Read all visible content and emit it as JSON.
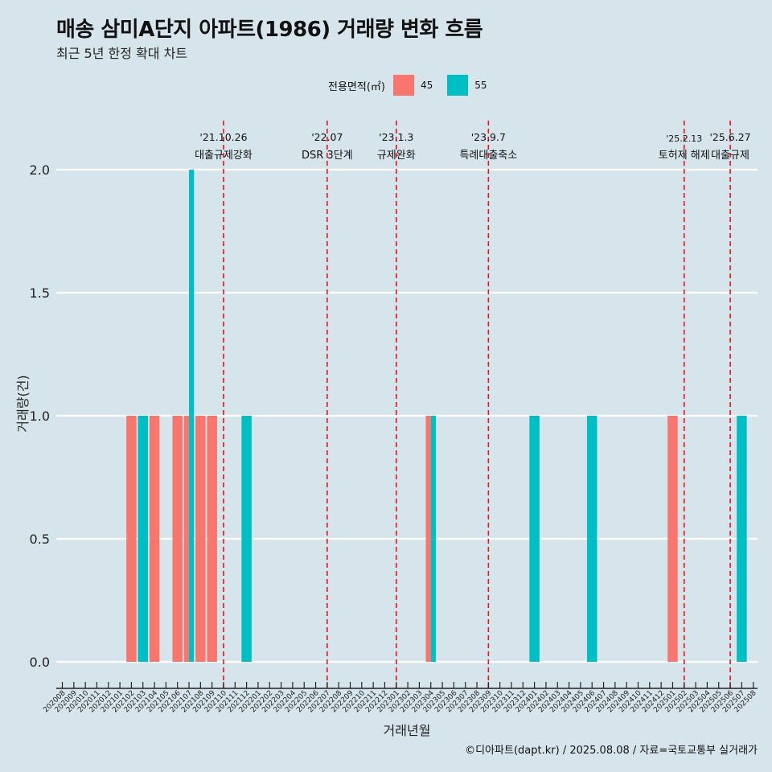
{
  "title": "매송 삼미A단지 아파트(1986) 거래량 변화 흐름",
  "subtitle": "최근 5년 한정 확대 차트",
  "legend": {
    "title": "전용면적(㎡)",
    "items": [
      {
        "label": "45",
        "color": "#f8766d"
      },
      {
        "label": "55",
        "color": "#00bfc4"
      }
    ]
  },
  "caption": "©디아파트(dapt.kr) / 2025.08.08 / 자료=국토교통부 실거래가",
  "chart_data": {
    "type": "bar",
    "xlabel": "거래년월",
    "ylabel": "거래량(건)",
    "ylim": [
      0,
      2
    ],
    "yticks": [
      "0.0",
      "0.5",
      "1.0",
      "1.5",
      "2.0"
    ],
    "ytick_values": [
      0,
      0.5,
      1.0,
      1.5,
      2.0
    ],
    "categories": [
      "202008",
      "202009",
      "202010",
      "202011",
      "202012",
      "202101",
      "202102",
      "202103",
      "202104",
      "202105",
      "202106",
      "202107",
      "202108",
      "202109",
      "202110",
      "202111",
      "202112",
      "202201",
      "202202",
      "202203",
      "202204",
      "202205",
      "202206",
      "202207",
      "202208",
      "202209",
      "202210",
      "202211",
      "202212",
      "202301",
      "202302",
      "202303",
      "202304",
      "202305",
      "202306",
      "202307",
      "202308",
      "202309",
      "202310",
      "202311",
      "202312",
      "202401",
      "202402",
      "202403",
      "202404",
      "202405",
      "202406",
      "202407",
      "202408",
      "202409",
      "202410",
      "202411",
      "202412",
      "202501",
      "202502",
      "202503",
      "202504",
      "202505",
      "202506",
      "202507",
      "202508"
    ],
    "series": [
      {
        "name": "45",
        "color": "#f8766d",
        "values": [
          0,
          0,
          0,
          0,
          0,
          0,
          1,
          0,
          1,
          0,
          1,
          1,
          1,
          1,
          0,
          0,
          0,
          0,
          0,
          0,
          0,
          0,
          0,
          0,
          0,
          0,
          0,
          0,
          0,
          0,
          0,
          0,
          1,
          0,
          0,
          0,
          0,
          0,
          0,
          0,
          0,
          0,
          0,
          0,
          0,
          0,
          0,
          0,
          0,
          0,
          0,
          0,
          0,
          1,
          0,
          0,
          0,
          0,
          0,
          0,
          0
        ]
      },
      {
        "name": "55",
        "color": "#00bfc4",
        "values": [
          0,
          0,
          0,
          0,
          0,
          0,
          0,
          1,
          0,
          0,
          0,
          2,
          0,
          0,
          0,
          0,
          1,
          0,
          0,
          0,
          0,
          0,
          0,
          0,
          0,
          0,
          0,
          0,
          0,
          0,
          0,
          0,
          1,
          0,
          0,
          0,
          0,
          0,
          0,
          0,
          0,
          1,
          0,
          0,
          0,
          0,
          1,
          0,
          0,
          0,
          0,
          0,
          0,
          0,
          0,
          0,
          0,
          0,
          0,
          1,
          0
        ]
      }
    ],
    "events": [
      {
        "date": "'21.10.26",
        "label": "대출규제강화",
        "at": "202110"
      },
      {
        "date": "'22.07",
        "label": "DSR 3단계",
        "at": "202207"
      },
      {
        "date": "'23.1.3",
        "label": "규제완화",
        "at": "202301"
      },
      {
        "date": "'23.9.7",
        "label": "특례대출축소",
        "at": "202309"
      },
      {
        "date": "'25.2.13",
        "label": "토허제 해제",
        "at": "202502"
      },
      {
        "date": "'25.6.27",
        "label": "대출규제",
        "at": "202506"
      }
    ],
    "grid": true,
    "legend_position": "top"
  }
}
